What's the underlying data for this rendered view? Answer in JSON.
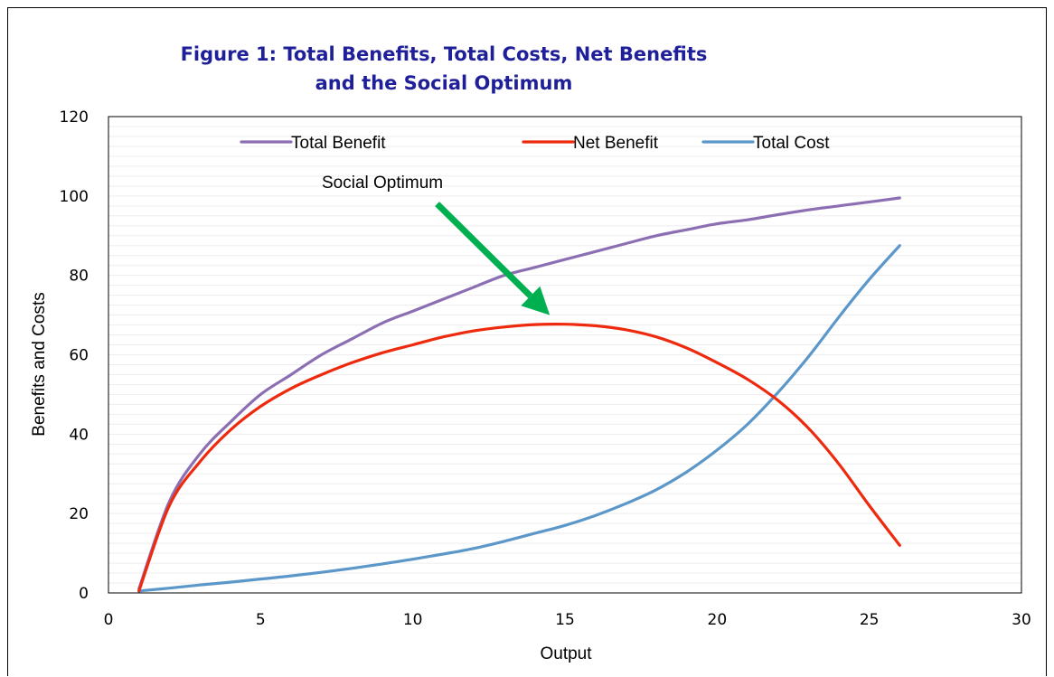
{
  "chart_data": {
    "type": "line",
    "title_lines": [
      "Figure 1: Total Benefits, Total Costs, Net Benefits",
      "and the Social Optimum"
    ],
    "xlabel": "Output",
    "ylabel": "Benefits and Costs",
    "xlim": [
      0,
      30
    ],
    "ylim": [
      0,
      120
    ],
    "x_ticks": [
      "0",
      "5",
      "10",
      "15",
      "20",
      "25",
      "30"
    ],
    "y_ticks": [
      "0",
      "20",
      "40",
      "60",
      "80",
      "100",
      "120"
    ],
    "grid": "horizontal minor gridlines every 2.5",
    "legend_position": "top",
    "x": [
      1,
      2,
      3,
      4,
      5,
      6,
      7,
      8,
      9,
      10,
      11,
      12,
      13,
      14,
      15,
      16,
      17,
      18,
      19,
      20,
      21,
      22,
      23,
      24,
      25,
      26
    ],
    "series": [
      {
        "name": "Total Benefit",
        "color": "#8c6fb3",
        "values": [
          1,
          23,
          35,
          43,
          50,
          55,
          60,
          64,
          68,
          71,
          74,
          77,
          80,
          82,
          84,
          86,
          88,
          90,
          91.5,
          93,
          94,
          95.3,
          96.5,
          97.5,
          98.5,
          99.5
        ]
      },
      {
        "name": "Net Benefit",
        "color": "#ee2a0e",
        "values": [
          0.5,
          22,
          33,
          41,
          47,
          51.5,
          55,
          58,
          60.5,
          62.5,
          64.5,
          66,
          67,
          67.6,
          67.7,
          67.3,
          66.3,
          64.5,
          61.7,
          58,
          53.8,
          48.5,
          41.5,
          32.5,
          22,
          12
        ]
      },
      {
        "name": "Total Cost",
        "color": "#5c97ca",
        "values": [
          0.5,
          1.2,
          2,
          2.7,
          3.5,
          4.3,
          5.2,
          6.2,
          7.3,
          8.5,
          9.8,
          11.2,
          13,
          15,
          17,
          19.5,
          22.5,
          26,
          30.5,
          36,
          42.5,
          50.5,
          59.5,
          69.5,
          79,
          87.5
        ]
      }
    ],
    "annotation": {
      "text": "Social Optimum",
      "arrow_color": "#00b050",
      "arrow_from": [
        10.8,
        98
      ],
      "arrow_to": [
        14.5,
        70
      ]
    }
  }
}
